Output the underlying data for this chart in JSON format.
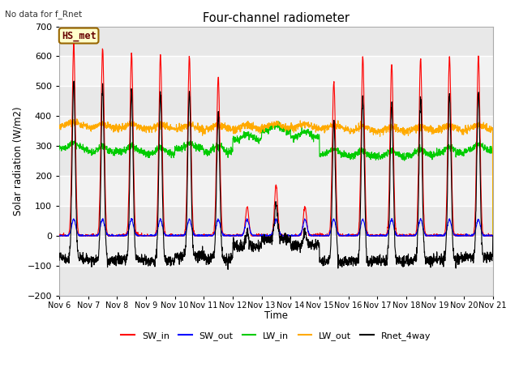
{
  "title": "Four-channel radiometer",
  "top_left_text": "No data for f_Rnet",
  "station_label": "HS_met",
  "ylabel": "Solar radiation (W/m2)",
  "xlabel": "Time",
  "ylim": [
    -200,
    700
  ],
  "yticks": [
    -200,
    -100,
    0,
    100,
    200,
    300,
    400,
    500,
    600,
    700
  ],
  "x_tick_labels": [
    "Nov 6",
    "Nov 7",
    "Nov 8",
    "Nov 9",
    "Nov 10",
    "Nov 11",
    "Nov 12",
    "Nov 13",
    "Nov 14",
    "Nov 15",
    "Nov 16",
    "Nov 17",
    "Nov 18",
    "Nov 19",
    "Nov 20",
    "Nov 21"
  ],
  "num_days": 15,
  "colors": {
    "SW_in": "#ff0000",
    "SW_out": "#0000ff",
    "LW_in": "#00cc00",
    "LW_out": "#ffaa00",
    "Rnet_4way": "#000000"
  },
  "legend_labels": [
    "SW_in",
    "SW_out",
    "LW_in",
    "LW_out",
    "Rnet_4way"
  ],
  "plot_bg_color": "#ebebeb",
  "grid_color": "#ffffff",
  "band_colors": [
    "#e8e8e8",
    "#f8f8f8"
  ]
}
